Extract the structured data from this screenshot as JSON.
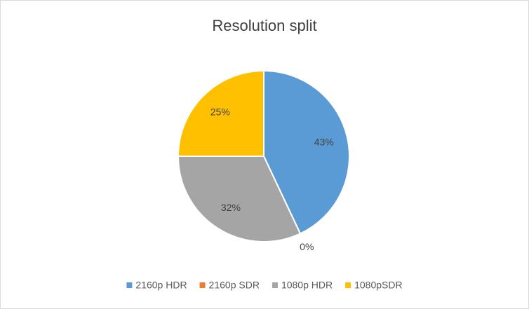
{
  "chart_data": {
    "type": "pie",
    "title": "Resolution split",
    "categories": [
      "2160p HDR",
      "2160p SDR",
      "1080p HDR",
      "1080pSDR"
    ],
    "values": [
      43,
      0,
      32,
      25
    ],
    "value_labels": [
      "43%",
      "0%",
      "32%",
      "25%"
    ],
    "colors": [
      "#5b9bd5",
      "#ed7d31",
      "#a5a5a5",
      "#ffc000"
    ],
    "legend": "bottom"
  }
}
